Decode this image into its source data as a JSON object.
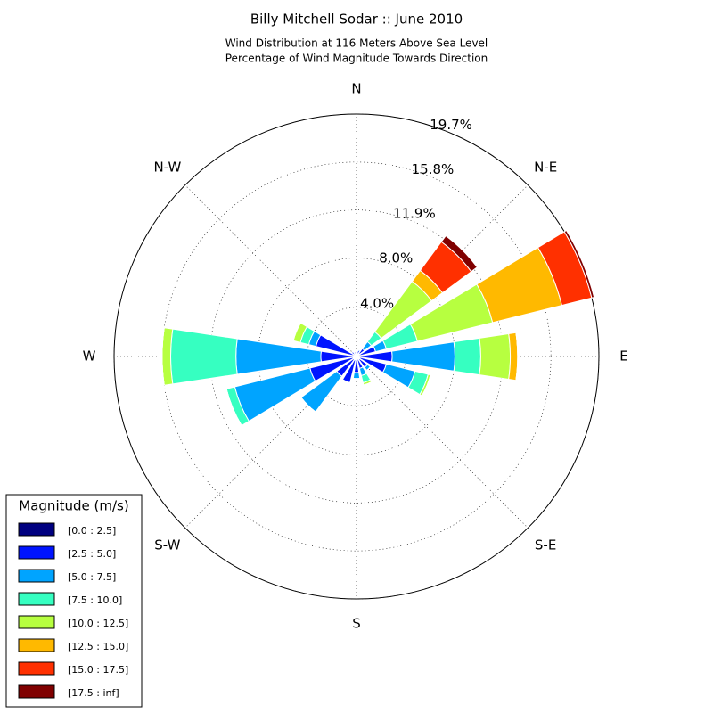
{
  "chart_data": {
    "type": "windrose",
    "title": "Billy Mitchell Sodar :: June 2010",
    "subtitle": [
      "Wind Distribution at 116 Meters Above Sea Level",
      "Percentage of Wind Magnitude Towards Direction"
    ],
    "categories": [
      "E",
      null,
      "N-E",
      null,
      "N",
      null,
      "N-W",
      null,
      "W",
      null,
      "S-W",
      null,
      "S",
      null,
      "S-E",
      null
    ],
    "ylim": [
      0,
      19.7
    ],
    "yticks": [
      {
        "value": 4.0,
        "label": "4.0%"
      },
      {
        "value": 8.0,
        "label": "8.0%"
      },
      {
        "value": 11.9,
        "label": "11.9%"
      },
      {
        "value": 15.8,
        "label": "15.8%"
      },
      {
        "value": 19.7,
        "label": "19.7%"
      }
    ],
    "grid": true,
    "legend_title": "Magnitude (m/s)",
    "legend_position": "lower left",
    "series": [
      {
        "name": "[0.0 : 2.5]",
        "color": "#000080",
        "values": [
          0.3,
          0.3,
          0.3,
          0.2,
          0.2,
          0.2,
          0.2,
          0.3,
          0.3,
          0.3,
          0.3,
          0.3,
          0.3,
          0.2,
          0.3,
          0.3
        ]
      },
      {
        "name": "[2.5 : 5.0]",
        "color": "#0014ff",
        "values": [
          2.6,
          1.3,
          0.5,
          0.3,
          0.1,
          0.2,
          0.3,
          3.1,
          2.6,
          3.6,
          1.7,
          1.9,
          1.0,
          0.8,
          0.8,
          2.2
        ]
      },
      {
        "name": "[5.0 : 7.5]",
        "color": "#00a4ff",
        "values": [
          5.1,
          0.9,
          0.7,
          0.1,
          0,
          0,
          0,
          0.6,
          6.9,
          6.3,
          3.6,
          0,
          0.5,
          0.6,
          0.3,
          2.4
        ]
      },
      {
        "name": "[7.5 : 10.0]",
        "color": "#36ffc1",
        "values": [
          2.1,
          2.6,
          1.0,
          0,
          0,
          0,
          0,
          0.7,
          5.3,
          0.7,
          0,
          0,
          0,
          0.6,
          0,
          1.1
        ]
      },
      {
        "name": "[10.0 : 12.5]",
        "color": "#b7ff40",
        "values": [
          2.4,
          6.3,
          5.1,
          0,
          0,
          0,
          0,
          0.6,
          0.7,
          0,
          0,
          0,
          0,
          0.2,
          0,
          0.2
        ]
      },
      {
        "name": "[12.5 : 15.0]",
        "color": "#ffb900",
        "values": [
          0.6,
          5.8,
          1.1,
          0,
          0,
          0,
          0,
          0,
          0,
          0,
          0,
          0,
          0,
          0,
          0,
          0
        ]
      },
      {
        "name": "[15.0 : 17.5]",
        "color": "#ff3000",
        "values": [
          0,
          2.5,
          2.9,
          0,
          0,
          0,
          0,
          0,
          0,
          0,
          0,
          0,
          0,
          0,
          0,
          0
        ]
      },
      {
        "name": "[17.5 : inf]",
        "color": "#800000",
        "values": [
          0,
          0.2,
          0.6,
          0,
          0,
          0,
          0,
          0,
          0,
          0,
          0,
          0,
          0,
          0,
          0,
          0
        ]
      }
    ]
  }
}
